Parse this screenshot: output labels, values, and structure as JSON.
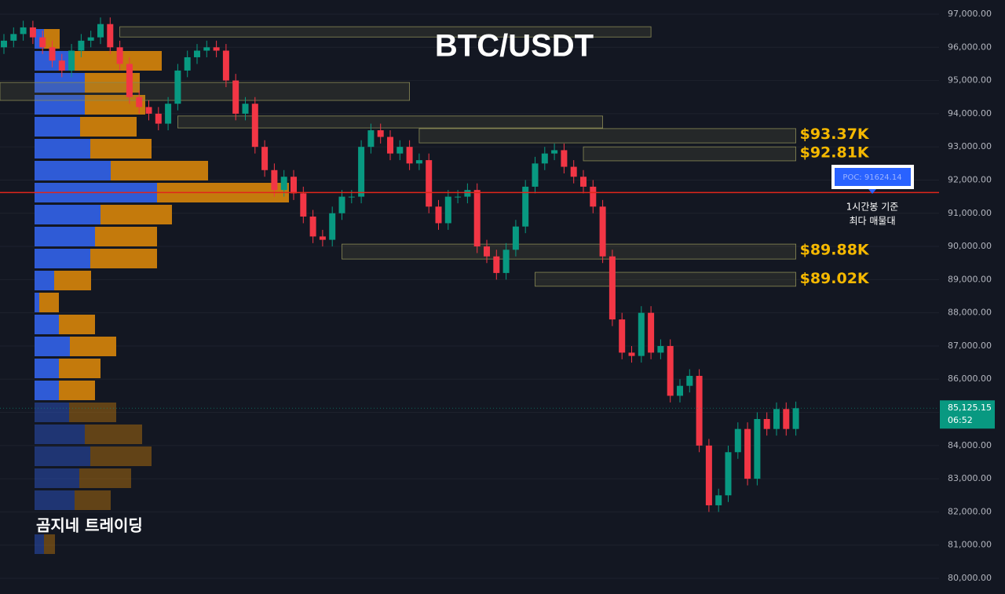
{
  "chart_data": {
    "type": "candlestick",
    "title": "BTC/USDT",
    "watermark": "곰지네 트레이딩",
    "ylim": [
      80000,
      97000
    ],
    "yticks": [
      {
        "value": 97000,
        "label": "97,000.00"
      },
      {
        "value": 96000,
        "label": "96,000.00"
      },
      {
        "value": 95000,
        "label": "95,000.00"
      },
      {
        "value": 94000,
        "label": "94,000.00"
      },
      {
        "value": 93000,
        "label": "93,000.00"
      },
      {
        "value": 92000,
        "label": "92,000.00"
      },
      {
        "value": 91000,
        "label": "91,000.00"
      },
      {
        "value": 90000,
        "label": "90,000.00"
      },
      {
        "value": 89000,
        "label": "89,000.00"
      },
      {
        "value": 88000,
        "label": "88,000.00"
      },
      {
        "value": 87000,
        "label": "87,000.00"
      },
      {
        "value": 86000,
        "label": "86,000.00"
      },
      {
        "value": 85000,
        "label": "85,000.00"
      },
      {
        "value": 84000,
        "label": "84,000.00"
      },
      {
        "value": 83000,
        "label": "83,000.00"
      },
      {
        "value": 82000,
        "label": "82,000.00"
      },
      {
        "value": 81000,
        "label": "81,000.00"
      },
      {
        "value": 80000,
        "label": "80,000.00"
      }
    ],
    "up_color": "#089981",
    "down_color": "#f23645",
    "candles": [
      [
        96000,
        96400,
        95800,
        96200
      ],
      [
        96200,
        96600,
        96000,
        96400
      ],
      [
        96400,
        96800,
        96200,
        96600
      ],
      [
        96600,
        96800,
        96100,
        96300
      ],
      [
        96300,
        96500,
        95800,
        96000
      ],
      [
        96000,
        96200,
        95400,
        95600
      ],
      [
        95600,
        95800,
        95100,
        95300
      ],
      [
        95300,
        96100,
        95100,
        95900
      ],
      [
        95900,
        96400,
        95700,
        96200
      ],
      [
        96200,
        96500,
        96000,
        96300
      ],
      [
        96300,
        96900,
        96100,
        96700
      ],
      [
        96700,
        96900,
        95800,
        96000
      ],
      [
        96000,
        96200,
        95300,
        95500
      ],
      [
        95500,
        95700,
        94300,
        94500
      ],
      [
        94500,
        94700,
        94000,
        94200
      ],
      [
        94200,
        94400,
        93800,
        94000
      ],
      [
        94000,
        94200,
        93500,
        93700
      ],
      [
        93700,
        94500,
        93500,
        94300
      ],
      [
        94300,
        95500,
        94100,
        95300
      ],
      [
        95300,
        95900,
        95100,
        95700
      ],
      [
        95700,
        96100,
        95500,
        95900
      ],
      [
        95900,
        96200,
        95700,
        96000
      ],
      [
        96000,
        96200,
        95700,
        95900
      ],
      [
        95900,
        96100,
        94800,
        95000
      ],
      [
        95000,
        95200,
        93800,
        94000
      ],
      [
        94000,
        94500,
        93800,
        94300
      ],
      [
        94300,
        94500,
        92800,
        93000
      ],
      [
        93000,
        93200,
        92100,
        92300
      ],
      [
        92300,
        92500,
        91500,
        91700
      ],
      [
        91700,
        92300,
        91500,
        92100
      ],
      [
        92100,
        92300,
        91400,
        91600
      ],
      [
        91600,
        91800,
        90700,
        90900
      ],
      [
        90900,
        91100,
        90100,
        90300
      ],
      [
        90300,
        90500,
        90000,
        90200
      ],
      [
        90200,
        91200,
        90000,
        91000
      ],
      [
        91000,
        91700,
        90800,
        91500
      ],
      [
        91500,
        91700,
        91300,
        91500
      ],
      [
        91500,
        93200,
        91300,
        93000
      ],
      [
        93000,
        93700,
        92800,
        93500
      ],
      [
        93500,
        93700,
        93100,
        93300
      ],
      [
        93300,
        93500,
        92600,
        92800
      ],
      [
        92800,
        93200,
        92600,
        93000
      ],
      [
        93000,
        93200,
        92300,
        92500
      ],
      [
        92500,
        92800,
        92300,
        92600
      ],
      [
        92600,
        92800,
        91000,
        91200
      ],
      [
        91200,
        91400,
        90500,
        90700
      ],
      [
        90700,
        91700,
        90500,
        91500
      ],
      [
        91500,
        91700,
        91300,
        91500
      ],
      [
        91500,
        91900,
        91300,
        91700
      ],
      [
        91700,
        91900,
        89800,
        90000
      ],
      [
        90000,
        90200,
        89500,
        89700
      ],
      [
        89700,
        89900,
        89000,
        89200
      ],
      [
        89200,
        90100,
        89000,
        89900
      ],
      [
        89900,
        90800,
        89700,
        90600
      ],
      [
        90600,
        92000,
        90400,
        91800
      ],
      [
        91800,
        92700,
        91600,
        92500
      ],
      [
        92500,
        93000,
        92300,
        92800
      ],
      [
        92800,
        93100,
        92600,
        92900
      ],
      [
        92900,
        93100,
        92200,
        92400
      ],
      [
        92400,
        92600,
        91900,
        92100
      ],
      [
        92100,
        92300,
        91600,
        91800
      ],
      [
        91800,
        92000,
        91000,
        91200
      ],
      [
        91200,
        91400,
        89500,
        89700
      ],
      [
        89700,
        89900,
        87600,
        87800
      ],
      [
        87800,
        88000,
        86600,
        86800
      ],
      [
        86800,
        87000,
        86500,
        86700
      ],
      [
        86700,
        88200,
        86500,
        88000
      ],
      [
        88000,
        88200,
        86600,
        86800
      ],
      [
        86800,
        87200,
        86600,
        87000
      ],
      [
        87000,
        87200,
        85300,
        85500
      ],
      [
        85500,
        86000,
        85300,
        85800
      ],
      [
        85800,
        86300,
        85600,
        86100
      ],
      [
        86100,
        86300,
        83800,
        84000
      ],
      [
        84000,
        84200,
        82000,
        82200
      ],
      [
        82200,
        82700,
        82000,
        82500
      ],
      [
        82500,
        84000,
        82300,
        83800
      ],
      [
        83800,
        84700,
        83600,
        84500
      ],
      [
        84500,
        84700,
        82800,
        83000
      ],
      [
        83000,
        85000,
        82800,
        84800
      ],
      [
        84800,
        85000,
        84300,
        84500
      ],
      [
        84500,
        85300,
        84300,
        85100
      ],
      [
        85100,
        85300,
        84300,
        84500
      ],
      [
        84500,
        85325,
        84300,
        85125.15
      ]
    ],
    "last_price": {
      "value": 85125.15,
      "label": "85,125.15"
    },
    "countdown": "06:52",
    "poc": {
      "value": 91624.14,
      "label": "POC: 91624.14",
      "color": "#e0261b"
    },
    "poc_note": [
      "1시간봉 기준",
      "최다 매물대"
    ],
    "volume_profile": {
      "buy_color": "#2f5bd6",
      "sell_color": "#c47a0c",
      "buy": [
        12,
        50,
        64,
        64,
        58,
        71,
        97,
        156,
        84,
        77,
        71,
        25,
        6,
        31,
        45,
        31,
        31,
        44,
        64,
        71,
        57,
        51,
        0,
        12
      ],
      "sell": [
        20,
        112,
        70,
        77,
        72,
        78,
        124,
        168,
        91,
        79,
        85,
        47,
        25,
        46,
        59,
        53,
        46,
        60,
        73,
        78,
        66,
        46,
        0,
        14
      ]
    },
    "zones": [
      {
        "top": 96620,
        "bottom": 96310,
        "start": 12,
        "end": 67
      },
      {
        "top": 94940,
        "bottom": 94400,
        "start": 0,
        "end": 42
      },
      {
        "top": 93930,
        "bottom": 93570,
        "start": 18,
        "end": 62
      },
      {
        "top": 93550,
        "bottom": 93120,
        "start": 43,
        "end": 82,
        "value": 93370,
        "label": "$93.37K"
      },
      {
        "top": 93000,
        "bottom": 92580,
        "start": 60,
        "end": 82,
        "value": 92810,
        "label": "$92.81K"
      },
      {
        "top": 90070,
        "bottom": 89620,
        "start": 35,
        "end": 82,
        "value": 89880,
        "label": "$89.88K"
      },
      {
        "top": 89220,
        "bottom": 88800,
        "start": 55,
        "end": 82,
        "value": 89020,
        "label": "$89.02K"
      }
    ]
  }
}
